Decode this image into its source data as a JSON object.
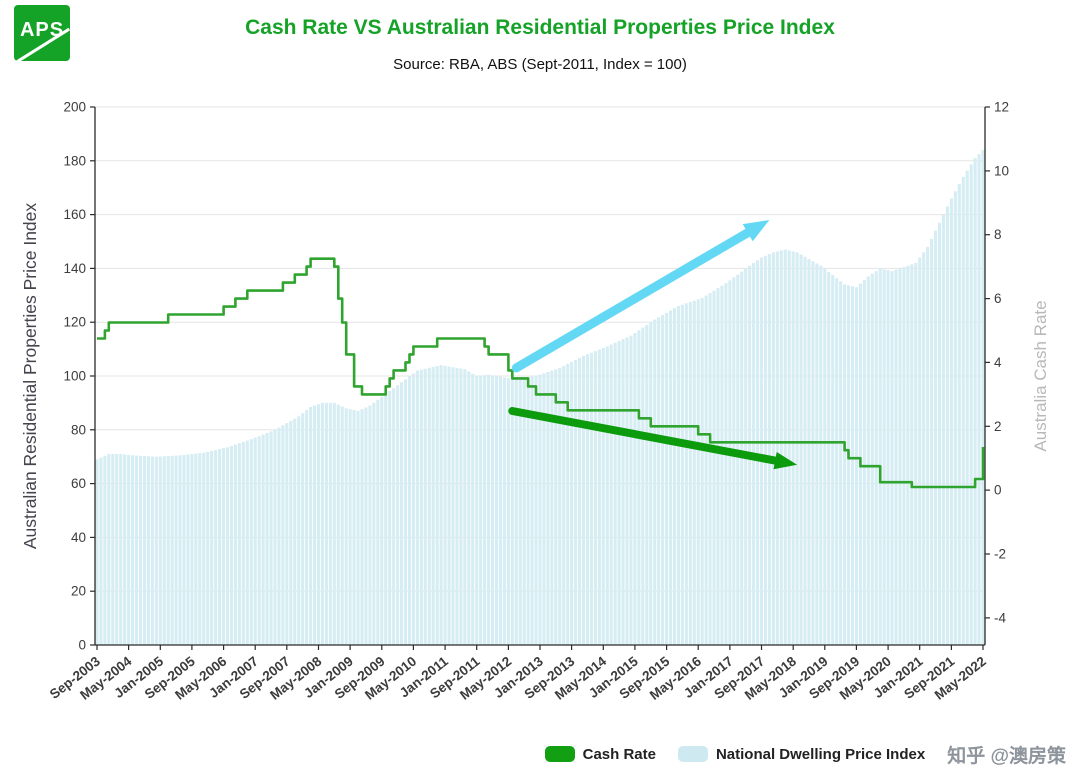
{
  "logo": {
    "text": "APS"
  },
  "header": {
    "title": "Cash Rate VS Australian Residential Properties Price Index",
    "subtitle": "Source: RBA, ABS (Sept-2011, Index = 100)"
  },
  "watermark": {
    "text": "知乎 @澳房策"
  },
  "legend": [
    {
      "label": "Cash Rate",
      "color": "#12a012"
    },
    {
      "label": "National Dwelling Price Index",
      "color": "#cfe9f1"
    }
  ],
  "colors": {
    "brand_green": "#15a327",
    "line_green": "#2fa42f",
    "arrow_green": "#0c9b0c",
    "arrow_cyan": "#63d8f5",
    "bar_fill": "#d6edf3",
    "grid": "#e5e5e5",
    "axis": "#2b2b2b",
    "tick_text": "#3c3c3c"
  },
  "chart_data": {
    "type": "combo",
    "title": "Cash Rate VS Australian Residential Properties Price Index",
    "subtitle": "Source: RBA, ABS (Sept-2011, Index = 100)",
    "months_total": 225,
    "x_start": "Sep-2003",
    "x_end": "May-2022",
    "x_tick_every_months": 8,
    "x_tick_labels": [
      "Sep-2003",
      "May-2004",
      "Jan-2005",
      "Sep-2005",
      "May-2006",
      "Jan-2007",
      "Sep-2007",
      "May-2008",
      "Jan-2009",
      "Sep-2009",
      "May-2010",
      "Jan-2011",
      "Sep-2011",
      "May-2012",
      "Jan-2013",
      "Sep-2013",
      "May-2014",
      "Jan-2015",
      "Sep-2015",
      "May-2016",
      "Jan-2017",
      "Sep-2017",
      "May-2018",
      "Jan-2019",
      "Sep-2019",
      "May-2020",
      "Jan-2021",
      "Sep-2021",
      "May-2022"
    ],
    "left_axis": {
      "label": "Australian Residential Properties Price Index",
      "min": 0,
      "max": 200,
      "ticks": [
        0,
        20,
        40,
        60,
        80,
        100,
        120,
        140,
        160,
        180,
        200
      ]
    },
    "right_axis": {
      "label": "Australia Cash Rate",
      "min": -4.85,
      "max": 12,
      "ticks": [
        -4,
        -2,
        0,
        2,
        4,
        6,
        8,
        10,
        12
      ]
    },
    "grid": "horizontal",
    "legend_position": "bottom-right",
    "series": [
      {
        "name": "Cash Rate",
        "type": "step-line",
        "axis": "right",
        "unit": "%",
        "color": "#2fa42f",
        "points": [
          [
            0,
            4.75
          ],
          [
            2,
            5.0
          ],
          [
            3,
            5.25
          ],
          [
            18,
            5.5
          ],
          [
            32,
            5.75
          ],
          [
            35,
            6.0
          ],
          [
            38,
            6.25
          ],
          [
            47,
            6.5
          ],
          [
            50,
            6.75
          ],
          [
            53,
            7.0
          ],
          [
            54,
            7.25
          ],
          [
            60,
            7.0
          ],
          [
            61,
            6.0
          ],
          [
            62,
            5.25
          ],
          [
            63,
            4.25
          ],
          [
            65,
            3.25
          ],
          [
            67,
            3.0
          ],
          [
            73,
            3.25
          ],
          [
            74,
            3.5
          ],
          [
            75,
            3.75
          ],
          [
            78,
            4.0
          ],
          [
            79,
            4.25
          ],
          [
            80,
            4.5
          ],
          [
            86,
            4.75
          ],
          [
            98,
            4.5
          ],
          [
            99,
            4.25
          ],
          [
            104,
            3.75
          ],
          [
            105,
            3.5
          ],
          [
            109,
            3.25
          ],
          [
            111,
            3.0
          ],
          [
            116,
            2.75
          ],
          [
            119,
            2.5
          ],
          [
            137,
            2.25
          ],
          [
            140,
            2.0
          ],
          [
            152,
            1.75
          ],
          [
            155,
            1.5
          ],
          [
            189,
            1.25
          ],
          [
            190,
            1.0
          ],
          [
            193,
            0.75
          ],
          [
            198,
            0.25
          ],
          [
            206,
            0.1
          ],
          [
            222,
            0.35
          ],
          [
            224,
            1.35
          ]
        ]
      },
      {
        "name": "National Dwelling Price Index",
        "type": "bar",
        "axis": "left",
        "color": "#d6edf3",
        "anchors": [
          [
            0,
            69
          ],
          [
            3,
            71
          ],
          [
            6,
            71
          ],
          [
            9,
            70.5
          ],
          [
            15,
            70
          ],
          [
            21,
            70.5
          ],
          [
            27,
            71.5
          ],
          [
            33,
            73.5
          ],
          [
            39,
            76.5
          ],
          [
            45,
            80
          ],
          [
            51,
            85
          ],
          [
            54,
            88.5
          ],
          [
            57,
            90
          ],
          [
            60,
            90
          ],
          [
            63,
            88
          ],
          [
            66,
            87
          ],
          [
            69,
            89
          ],
          [
            75,
            95.5
          ],
          [
            81,
            102
          ],
          [
            87,
            104
          ],
          [
            93,
            102.5
          ],
          [
            96,
            100
          ],
          [
            99,
            100.5
          ],
          [
            105,
            99
          ],
          [
            111,
            100
          ],
          [
            117,
            103
          ],
          [
            123,
            107.5
          ],
          [
            129,
            111
          ],
          [
            135,
            115
          ],
          [
            141,
            121
          ],
          [
            147,
            126
          ],
          [
            153,
            129
          ],
          [
            159,
            134.5
          ],
          [
            165,
            141
          ],
          [
            168,
            144
          ],
          [
            171,
            146
          ],
          [
            174,
            147
          ],
          [
            177,
            146
          ],
          [
            183,
            141
          ],
          [
            189,
            134
          ],
          [
            192,
            133
          ],
          [
            195,
            137
          ],
          [
            198,
            140
          ],
          [
            201,
            139
          ],
          [
            207,
            142
          ],
          [
            210,
            148
          ],
          [
            213,
            157
          ],
          [
            216,
            166
          ],
          [
            219,
            174
          ],
          [
            222,
            181
          ],
          [
            224,
            184
          ]
        ]
      }
    ],
    "annotations": [
      {
        "name": "dwelling-uptrend-arrow",
        "color": "#63d8f5",
        "width": 9,
        "from": [
          106,
          103
        ],
        "to": [
          170,
          158
        ]
      },
      {
        "name": "cash-rate-downtrend-arrow",
        "color": "#0c9b0c",
        "width": 8,
        "from": [
          105,
          87
        ],
        "to": [
          177,
          67
        ]
      }
    ]
  }
}
